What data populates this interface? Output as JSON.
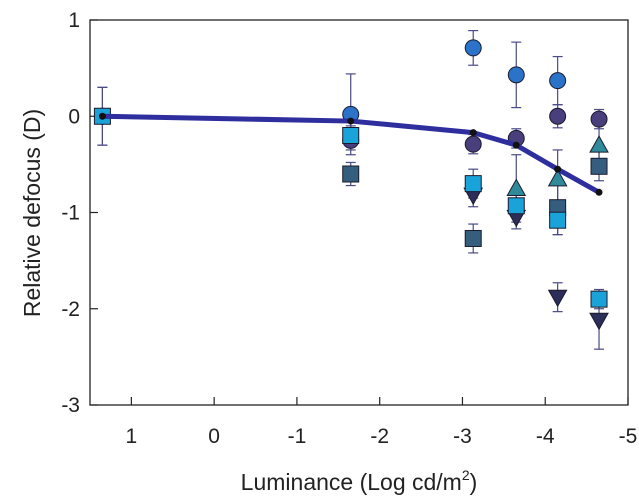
{
  "chart_data": {
    "type": "scatter",
    "title": "",
    "xlabel_main": "Luminance (Log cd/m",
    "xlabel_sup": "2",
    "xlabel_close": ")",
    "ylabel": "Relative defocus (D)",
    "xlim": [
      1.5,
      -5
    ],
    "ylim": [
      -3,
      1
    ],
    "x_ticks": [
      1,
      0,
      -1,
      -2,
      -3,
      -4,
      -5
    ],
    "x_tick_labels": [
      "1",
      "0",
      "-1",
      "-2",
      "-3",
      "-4",
      "-5"
    ],
    "y_ticks": [
      1,
      0,
      -1,
      -2,
      -3
    ],
    "y_tick_labels": [
      "1",
      "0",
      "-1",
      "-2",
      "-3"
    ],
    "grid": false,
    "legend": "none",
    "series": [
      {
        "marker": "circle",
        "color": "#2a73c8",
        "points": [
          {
            "x": 1.35,
            "y": 0.0,
            "err": 0.3
          },
          {
            "x": -1.65,
            "y": 0.02,
            "err": 0.42
          },
          {
            "x": -3.13,
            "y": 0.71,
            "err": 0.18
          },
          {
            "x": -3.65,
            "y": 0.43,
            "err": 0.34
          },
          {
            "x": -4.15,
            "y": 0.37,
            "err": 0.25
          }
        ]
      },
      {
        "marker": "circle",
        "color": "#4a3f7d",
        "points": [
          {
            "x": -1.65,
            "y": -0.25,
            "err": 0.1
          },
          {
            "x": -3.13,
            "y": -0.29,
            "err": 0.1
          },
          {
            "x": -3.65,
            "y": -0.23,
            "err": 0.1
          },
          {
            "x": -4.15,
            "y": 0.0,
            "err": 0.12
          },
          {
            "x": -4.65,
            "y": -0.03,
            "err": 0.1
          }
        ]
      },
      {
        "marker": "triangle-up",
        "color": "#2f8a9a",
        "points": [
          {
            "x": -3.65,
            "y": -0.75,
            "err": 0.35
          },
          {
            "x": -4.15,
            "y": -0.65,
            "err": 0.3
          },
          {
            "x": -4.65,
            "y": -0.3,
            "err": 0.2
          }
        ]
      },
      {
        "marker": "triangle-down",
        "color": "#2d2d5a",
        "points": [
          {
            "x": -3.13,
            "y": -0.82,
            "err": 0.12
          },
          {
            "x": -3.65,
            "y": -1.05,
            "err": 0.12
          },
          {
            "x": -4.15,
            "y": -1.88,
            "err": 0.15
          },
          {
            "x": -4.65,
            "y": -2.12,
            "err": 0.3
          }
        ]
      },
      {
        "marker": "square",
        "color": "#355d7d",
        "points": [
          {
            "x": -1.65,
            "y": -0.6,
            "err": 0.12
          },
          {
            "x": -3.13,
            "y": -1.27,
            "err": 0.15
          },
          {
            "x": -4.15,
            "y": -0.95,
            "err": 0.28
          },
          {
            "x": -4.65,
            "y": -0.52,
            "err": 0.15
          }
        ]
      },
      {
        "marker": "square",
        "color": "#1aa3d9",
        "points": [
          {
            "x": 1.35,
            "y": 0.0,
            "err": 0.3
          },
          {
            "x": -1.65,
            "y": -0.2,
            "err": 0.1
          },
          {
            "x": -3.13,
            "y": -0.7,
            "err": 0.15
          },
          {
            "x": -3.65,
            "y": -0.93,
            "err": 0.12
          },
          {
            "x": -4.15,
            "y": -1.08,
            "err": 0.15
          },
          {
            "x": -4.65,
            "y": -1.9,
            "err": 0.1
          }
        ]
      }
    ],
    "mean_line": {
      "color": "#2e2e9e",
      "points": [
        {
          "x": 1.35,
          "y": 0.0
        },
        {
          "x": -1.65,
          "y": -0.05
        },
        {
          "x": -3.13,
          "y": -0.17
        },
        {
          "x": -3.65,
          "y": -0.3
        },
        {
          "x": -4.15,
          "y": -0.55
        },
        {
          "x": -4.65,
          "y": -0.79
        }
      ]
    }
  }
}
